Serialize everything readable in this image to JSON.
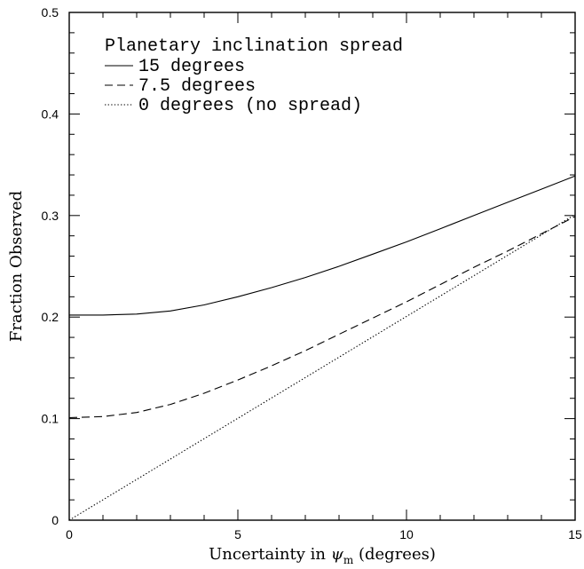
{
  "chart_data": {
    "type": "line",
    "xlabel": "Uncertainty in ψm (degrees)",
    "xlabel_parts": {
      "prefix": "Uncertainty in ",
      "symbol": "ψ",
      "subscript": "m",
      "suffix": " (degrees)"
    },
    "ylabel": "Fraction Observed",
    "xlim": [
      0,
      15
    ],
    "ylim": [
      0,
      0.5
    ],
    "x_ticks": [
      0,
      5,
      10,
      15
    ],
    "x_tick_labels": [
      "0",
      "5",
      "10",
      "15"
    ],
    "y_ticks": [
      0,
      0.1,
      0.2,
      0.3,
      0.4,
      0.5
    ],
    "y_tick_labels": [
      "0",
      "0.1",
      "0.2",
      "0.3",
      "0.4",
      "0.5"
    ],
    "grid": false,
    "legend": {
      "title": "Planetary inclination spread",
      "placement": "top-left"
    },
    "series": [
      {
        "name": "15 degrees",
        "line_style": "solid",
        "x": [
          0,
          1,
          2,
          3,
          4,
          5,
          6,
          7,
          8,
          9,
          10,
          11,
          12,
          13,
          14,
          15
        ],
        "y": [
          0.202,
          0.202,
          0.203,
          0.206,
          0.212,
          0.22,
          0.229,
          0.239,
          0.25,
          0.262,
          0.274,
          0.287,
          0.3,
          0.313,
          0.326,
          0.339
        ]
      },
      {
        "name": "7.5 degrees",
        "line_style": "dashed",
        "x": [
          0,
          1,
          2,
          3,
          4,
          5,
          6,
          7,
          8,
          9,
          10,
          11,
          12,
          13,
          14,
          15
        ],
        "y": [
          0.101,
          0.102,
          0.106,
          0.114,
          0.125,
          0.138,
          0.152,
          0.167,
          0.183,
          0.199,
          0.215,
          0.232,
          0.249,
          0.265,
          0.282,
          0.299
        ]
      },
      {
        "name": "0 degrees (no spread)",
        "line_style": "dotted",
        "x": [
          0,
          15
        ],
        "y": [
          0.0,
          0.301
        ]
      }
    ]
  }
}
